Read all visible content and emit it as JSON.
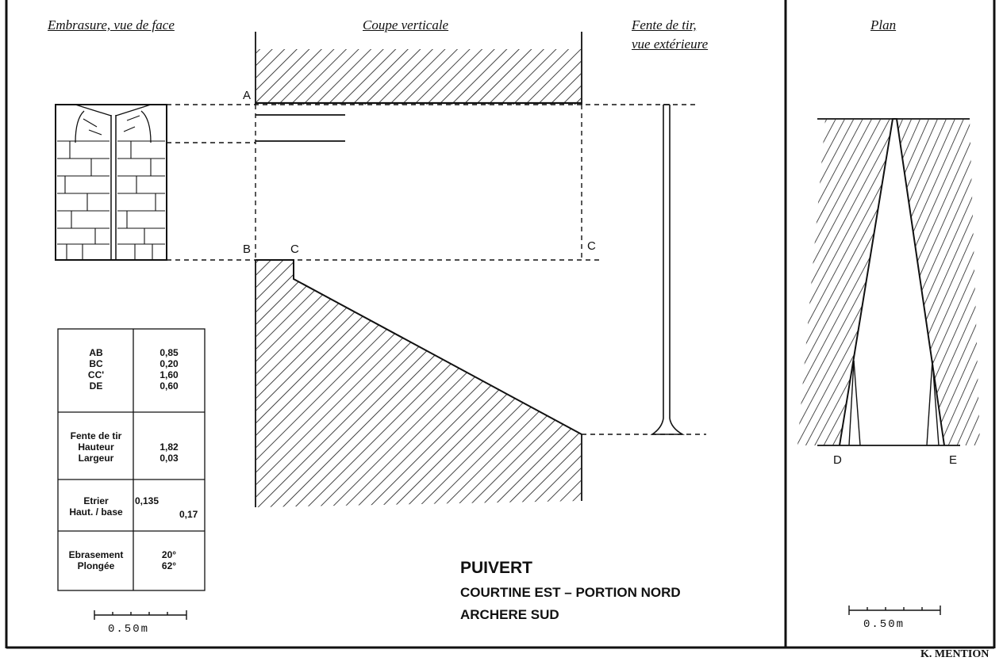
{
  "headings": {
    "face": "Embrasure, vue de face",
    "coupe": "Coupe verticale",
    "fente_line1": "Fente de tir,",
    "fente_line2": "vue extérieure",
    "plan": "Plan"
  },
  "point_labels": {
    "a": "A",
    "b": "B",
    "c": "C",
    "c_prime": "C",
    "d": "D",
    "e": "E"
  },
  "table": {
    "dims_labels": "AB\nBC\nCC'\nDE",
    "dims_values": "0,85\n0,20\n1,60\n0,60",
    "fente_labels": "Fente de tir\nHauteur\nLargeur",
    "fente_values": "1,82\n0,03",
    "etrier_label": "Etrier\nHaut. / base",
    "etrier_value_1": "0,135",
    "etrier_value_2": "0,17",
    "ebr_labels": "Ebrasement\nPlongée",
    "ebr_values": "20°\n62°"
  },
  "title": {
    "line1": "PUIVERT",
    "line2": "COURTINE EST – PORTION NORD",
    "line3": "ARCHERE SUD"
  },
  "scale_left": "0.50m",
  "scale_right": "0.50m",
  "author": "K. MENTION"
}
